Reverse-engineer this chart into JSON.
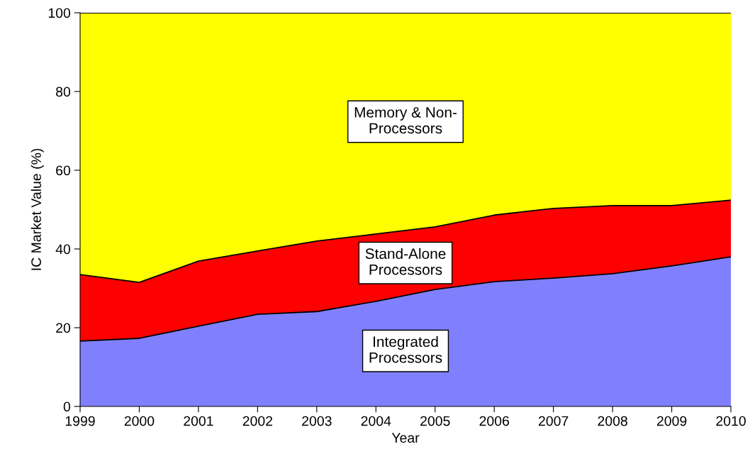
{
  "chart_data": {
    "type": "area",
    "stacked": true,
    "xlabel": "Year",
    "ylabel": "IC Market Value (%)",
    "x": [
      1999,
      2000,
      2001,
      2002,
      2003,
      2004,
      2005,
      2006,
      2007,
      2008,
      2009,
      2010
    ],
    "series": [
      {
        "name": "Integrated\nProcessors",
        "color": "#8080ff",
        "values": [
          16.6,
          17.3,
          20.4,
          23.4,
          24.1,
          26.7,
          29.7,
          31.7,
          32.6,
          33.7,
          35.7,
          38.0
        ]
      },
      {
        "name": "Stand-Alone\nProcessors",
        "color": "#ff0000",
        "values": [
          16.9,
          14.2,
          16.5,
          16.1,
          17.9,
          17.1,
          15.9,
          16.9,
          17.7,
          17.3,
          15.3,
          14.4
        ]
      },
      {
        "name": "Memory & Non-\nProcessors",
        "color": "#ffff00",
        "values": [
          66.5,
          68.5,
          63.1,
          60.5,
          58.0,
          56.2,
          54.4,
          51.4,
          49.7,
          49.0,
          49.0,
          47.6
        ]
      }
    ],
    "xlim": [
      1999,
      2010
    ],
    "xticks": [
      1999,
      2000,
      2001,
      2002,
      2003,
      2004,
      2005,
      2006,
      2007,
      2008,
      2009,
      2010
    ],
    "ylim": [
      0,
      100
    ],
    "yticks": [
      0,
      20,
      40,
      60,
      80,
      100
    ],
    "grid": false,
    "legend": false
  }
}
